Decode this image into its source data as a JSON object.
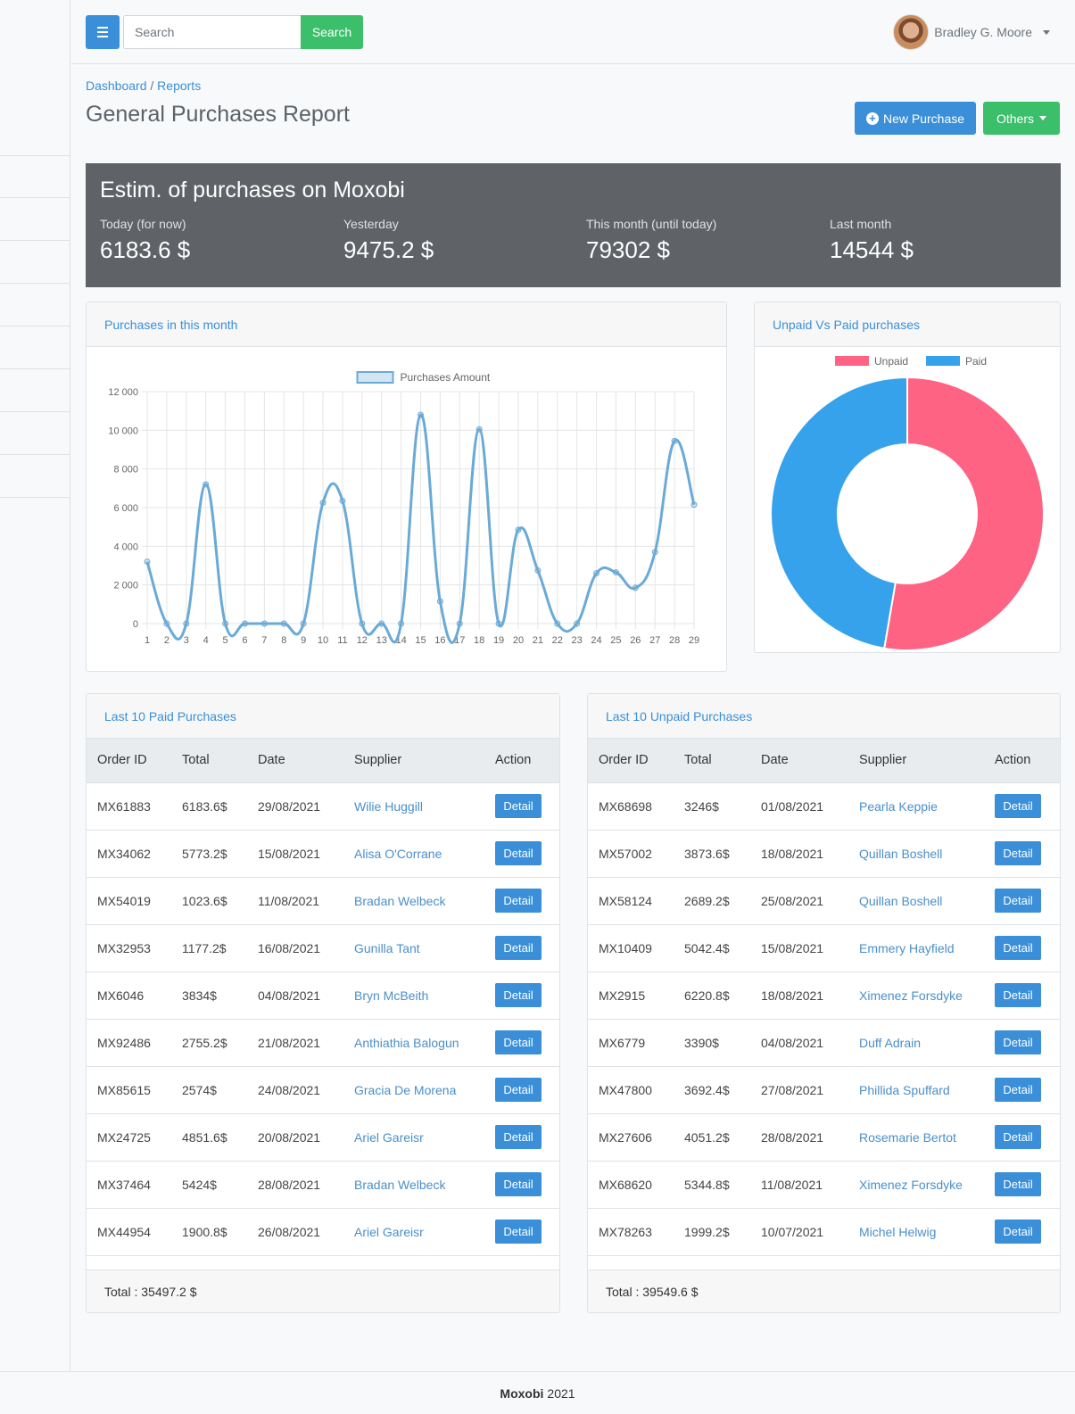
{
  "search": {
    "placeholder": "Search",
    "button_label": "Search"
  },
  "user": {
    "name": "Bradley G. Moore"
  },
  "breadcrumb": {
    "home": "Dashboard",
    "separator": "/",
    "current": "Reports"
  },
  "page": {
    "title": "General Purchases Report"
  },
  "actions": {
    "new_purchase": "New Purchase",
    "others": "Others"
  },
  "estimate": {
    "title": "Estim. of purchases on Moxobi",
    "stats": [
      {
        "label": "Today (for now)",
        "value": "6183.6 $"
      },
      {
        "label": "Yesterday",
        "value": "9475.2 $"
      },
      {
        "label": "This month (until today)",
        "value": "79302 $"
      },
      {
        "label": "Last month",
        "value": "14544 $"
      }
    ]
  },
  "line_card": {
    "title": "Purchases in this month"
  },
  "donut_card": {
    "title": "Unpaid Vs Paid purchases"
  },
  "colors": {
    "primary": "#3a8fd8",
    "success": "#3bbf6a",
    "unpaid": "#ff6384",
    "paid": "#36a2eb",
    "line": "#6aaad6"
  },
  "chart_data": [
    {
      "type": "line",
      "title": "",
      "xlabel": "",
      "ylabel": "",
      "ylim": [
        0,
        12000
      ],
      "yticks": [
        "0",
        "2 000",
        "4 000",
        "6 000",
        "8 000",
        "10 000",
        "12 000"
      ],
      "legend_position": "top",
      "grid": true,
      "x": [
        "1",
        "2",
        "3",
        "4",
        "5",
        "6",
        "7",
        "8",
        "9",
        "10",
        "11",
        "12",
        "13",
        "14",
        "15",
        "16",
        "17",
        "18",
        "19",
        "20",
        "21",
        "22",
        "23",
        "24",
        "25",
        "26",
        "27",
        "28",
        "29"
      ],
      "series": [
        {
          "name": "Purchases Amount",
          "values": [
            3200,
            0,
            0,
            7200,
            0,
            0,
            0,
            0,
            0,
            6250,
            6350,
            0,
            0,
            0,
            10800,
            1150,
            0,
            10050,
            0,
            4850,
            2750,
            0,
            0,
            2600,
            2650,
            1850,
            3700,
            9450,
            6150
          ]
        }
      ]
    },
    {
      "type": "pie",
      "title": "",
      "legend_position": "top",
      "labels": [
        "Unpaid",
        "Paid"
      ],
      "values": [
        39549.6,
        35497.2
      ]
    }
  ],
  "paid_table": {
    "title": "Last 10 Paid Purchases",
    "columns": [
      "Order ID",
      "Total",
      "Date",
      "Supplier",
      "Action"
    ],
    "action_label": "Detail",
    "rows": [
      [
        "MX61883",
        "6183.6$",
        "29/08/2021",
        "Wilie Huggill"
      ],
      [
        "MX34062",
        "5773.2$",
        "15/08/2021",
        "Alisa O'Corrane"
      ],
      [
        "MX54019",
        "1023.6$",
        "11/08/2021",
        "Bradan Welbeck"
      ],
      [
        "MX32953",
        "1177.2$",
        "16/08/2021",
        "Gunilla Tant"
      ],
      [
        "MX6046",
        "3834$",
        "04/08/2021",
        "Bryn McBeith"
      ],
      [
        "MX92486",
        "2755.2$",
        "21/08/2021",
        "Anthiathia Balogun"
      ],
      [
        "MX85615",
        "2574$",
        "24/08/2021",
        "Gracia De Morena"
      ],
      [
        "MX24725",
        "4851.6$",
        "20/08/2021",
        "Ariel Gareisr"
      ],
      [
        "MX37464",
        "5424$",
        "28/08/2021",
        "Bradan Welbeck"
      ],
      [
        "MX44954",
        "1900.8$",
        "26/08/2021",
        "Ariel Gareisr"
      ]
    ],
    "total": "Total : 35497.2 $"
  },
  "unpaid_table": {
    "title": "Last 10 Unpaid Purchases",
    "columns": [
      "Order ID",
      "Total",
      "Date",
      "Supplier",
      "Action"
    ],
    "action_label": "Detail",
    "rows": [
      [
        "MX68698",
        "3246$",
        "01/08/2021",
        "Pearla Keppie"
      ],
      [
        "MX57002",
        "3873.6$",
        "18/08/2021",
        "Quillan Boshell"
      ],
      [
        "MX58124",
        "2689.2$",
        "25/08/2021",
        "Quillan Boshell"
      ],
      [
        "MX10409",
        "5042.4$",
        "15/08/2021",
        "Emmery Hayfield"
      ],
      [
        "MX2915",
        "6220.8$",
        "18/08/2021",
        "Ximenez Forsdyke"
      ],
      [
        "MX6779",
        "3390$",
        "04/08/2021",
        "Duff Adrain"
      ],
      [
        "MX47800",
        "3692.4$",
        "27/08/2021",
        "Phillida Spuffard"
      ],
      [
        "MX27606",
        "4051.2$",
        "28/08/2021",
        "Rosemarie Bertot"
      ],
      [
        "MX68620",
        "5344.8$",
        "11/08/2021",
        "Ximenez Forsdyke"
      ],
      [
        "MX78263",
        "1999.2$",
        "10/07/2021",
        "Michel Helwig"
      ]
    ],
    "total": "Total : 39549.6 $"
  },
  "footer": {
    "brand": "Moxobi",
    "year": "2021"
  }
}
